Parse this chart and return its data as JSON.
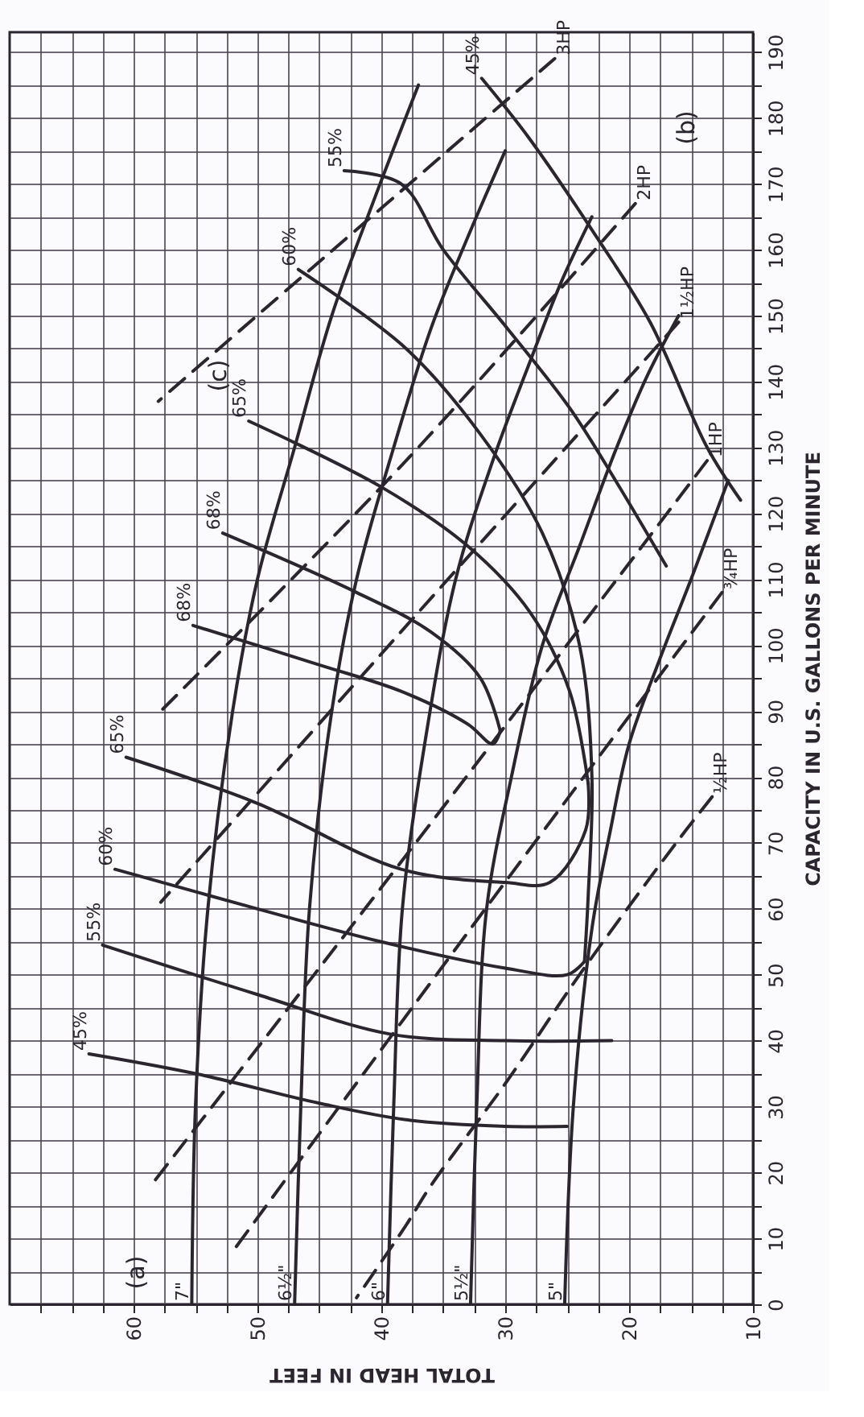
{
  "chart_data": {
    "type": "line",
    "xlabel": "TOTAL HEAD IN FEET",
    "ylabel": "CAPACITY IN U.S. GALLONS PER MINUTE",
    "xlim": [
      70,
      10
    ],
    "ylim": [
      0,
      193
    ],
    "xticks": [
      10,
      {
        "value": 12.5,
        "label": null
      },
      {
        "value": 15,
        "label": null
      },
      {
        "value": 17.5,
        "label": null
      },
      20,
      {
        "value": 22.5,
        "label": null
      },
      {
        "value": 25,
        "label": null
      },
      {
        "value": 27.5,
        "label": null
      },
      30,
      {
        "value": 32.5,
        "label": null
      },
      {
        "value": 35,
        "label": null
      },
      {
        "value": 37.5,
        "label": null
      },
      40,
      {
        "value": 42.5,
        "label": null
      },
      {
        "value": 45,
        "label": null
      },
      {
        "value": 47.5,
        "label": null
      },
      50,
      {
        "value": 52.5,
        "label": null
      },
      {
        "value": 55,
        "label": null
      },
      {
        "value": 57.5,
        "label": null
      },
      60,
      {
        "value": 62.5,
        "label": null
      },
      {
        "value": 65,
        "label": null
      },
      {
        "value": 67.5,
        "label": null
      }
    ],
    "yticks": [
      0,
      {
        "value": 5,
        "label": null
      },
      10,
      {
        "value": 15,
        "label": null
      },
      20,
      {
        "value": 25,
        "label": null
      },
      30,
      {
        "value": 35,
        "label": null
      },
      40,
      {
        "value": 45,
        "label": null
      },
      50,
      {
        "value": 55,
        "label": null
      },
      60,
      {
        "value": 65,
        "label": null
      },
      70,
      {
        "value": 75,
        "label": null
      },
      80,
      {
        "value": 85,
        "label": null
      },
      90,
      {
        "value": 95,
        "label": null
      },
      100,
      {
        "value": 105,
        "label": null
      },
      110,
      {
        "value": 115,
        "label": null
      },
      120,
      {
        "value": 125,
        "label": null
      },
      130,
      {
        "value": 135,
        "label": null
      },
      140,
      {
        "value": 145,
        "label": null
      },
      150,
      {
        "value": 155,
        "label": null
      },
      160,
      {
        "value": 165,
        "label": null
      },
      170,
      {
        "value": 175,
        "label": null
      },
      180,
      {
        "value": 185,
        "label": null
      },
      190
    ],
    "grid": true,
    "line_style": "solid",
    "series": [
      {
        "name": "7\"",
        "color": "#2b2530",
        "x": [
          55.3,
          55,
          54,
          52,
          50,
          47,
          44,
          40.5,
          37
        ],
        "values": [
          0,
          30,
          60,
          90,
          110,
          130,
          150,
          168,
          185
        ]
      },
      {
        "name": "6½\"",
        "color": "#2b2530",
        "x": [
          47,
          46.5,
          45.8,
          44,
          42,
          39,
          36,
          33,
          30
        ],
        "values": [
          0,
          30,
          60,
          90,
          110,
          130,
          148,
          162,
          175
        ]
      },
      {
        "name": "6\"",
        "color": "#2b2530",
        "x": [
          39.5,
          39,
          38.3,
          36.5,
          34,
          31,
          28,
          25.5,
          23
        ],
        "values": [
          0,
          30,
          60,
          85,
          110,
          128,
          143,
          155,
          165
        ]
      },
      {
        "name": "5½\"",
        "color": "#2b2530",
        "x": [
          32.8,
          32.3,
          31.5,
          29.5,
          27,
          24,
          21,
          18.5,
          16
        ],
        "values": [
          0,
          30,
          60,
          80,
          100,
          115,
          130,
          141,
          150
        ]
      },
      {
        "name": "5\"",
        "color": "#2b2530",
        "x": [
          25.2,
          24.5,
          23,
          21.5,
          20,
          17.5,
          15,
          13,
          12
        ],
        "values": [
          0,
          30,
          57,
          72,
          85,
          98,
          110,
          120,
          125
        ]
      },
      {
        "name": "45%",
        "color": "#2b2530",
        "x": [
          63.6,
          55,
          45,
          38,
          30,
          25
        ],
        "values": [
          38,
          35,
          30.5,
          28,
          27,
          27
        ]
      },
      {
        "name": "45%",
        "color": "#2b2530",
        "x": [
          31.9,
          28.1,
          22.3,
          18.3,
          13.7,
          11
        ],
        "values": [
          186,
          177,
          161,
          149,
          130,
          122
        ]
      },
      {
        "name": "55%",
        "color": "#2b2530",
        "x": [
          62.5,
          50,
          39.3,
          30,
          21.4
        ],
        "values": [
          54.5,
          47,
          41,
          40,
          40
        ]
      },
      {
        "name": "55%",
        "color": "#2b2530",
        "x": [
          43,
          38.4,
          35,
          29.8,
          24.8,
          21.1,
          17
        ],
        "values": [
          172,
          170,
          160,
          148,
          136,
          125,
          112
        ]
      },
      {
        "name": "60%",
        "color": "#2b2530",
        "x": [
          61.5,
          50,
          40,
          30,
          25,
          23.6
        ],
        "values": [
          66,
          60,
          55,
          51,
          50,
          52
        ]
      },
      {
        "name": "60%",
        "color": "#2b2530",
        "x": [
          46.7,
          38,
          32,
          27,
          24,
          23,
          23.3,
          23.6
        ],
        "values": [
          157,
          145,
          132,
          117,
          100,
          80,
          62,
          52
        ]
      },
      {
        "name": "65%",
        "color": "#2b2530",
        "x": [
          60.6,
          50,
          38.4,
          30,
          26.4,
          23.5,
          23.3
        ],
        "values": [
          83,
          76,
          66,
          64,
          64,
          72,
          79
        ]
      },
      {
        "name": "65%",
        "color": "#2b2530",
        "x": [
          50.7,
          40,
          33,
          28,
          24.8,
          23.3
        ],
        "values": [
          134,
          124,
          115,
          105,
          93,
          79
        ]
      },
      {
        "name": "68%",
        "color": "#2b2530",
        "x": [
          55.2,
          45,
          38.4,
          33,
          31,
          30.4
        ],
        "values": [
          103,
          97,
          93,
          88,
          85,
          87
        ]
      },
      {
        "name": "68%",
        "color": "#2b2530",
        "x": [
          52.8,
          42,
          36,
          32,
          30.4
        ],
        "values": [
          117,
          108,
          102,
          95,
          87
        ]
      },
      {
        "name": "½HP",
        "color": "#2b2530",
        "line_style": "dashed",
        "x": [
          13.3,
          16.2,
          24,
          29.8,
          36,
          38,
          42
        ],
        "values": [
          77,
          70,
          50,
          34,
          18,
          12,
          1
        ]
      },
      {
        "name": "¾HP",
        "color": "#2b2530",
        "line_style": "dashed",
        "x": [
          12.5,
          32,
          52
        ],
        "values": [
          108,
          59,
          8
        ]
      },
      {
        "name": "1HP",
        "color": "#2b2530",
        "line_style": "dashed",
        "x": [
          13.7,
          36,
          58.6
        ],
        "values": [
          128,
          73,
          18
        ]
      },
      {
        "name": "1½HP",
        "color": "#2b2530",
        "line_style": "dashed",
        "x": [
          16,
          37,
          57.8
        ],
        "values": [
          149,
          105,
          61
        ]
      },
      {
        "name": "2HP",
        "color": "#2b2530",
        "line_style": "dashed",
        "x": [
          19.5,
          38,
          57.8
        ],
        "values": [
          167,
          128,
          90
        ]
      },
      {
        "name": "3HP",
        "color": "#2b2530",
        "line_style": "dashed",
        "x": [
          26,
          44.5,
          58
        ],
        "values": [
          189,
          159,
          137
        ]
      }
    ],
    "annotations": [
      "(a)",
      "(b)",
      "(c)"
    ]
  }
}
